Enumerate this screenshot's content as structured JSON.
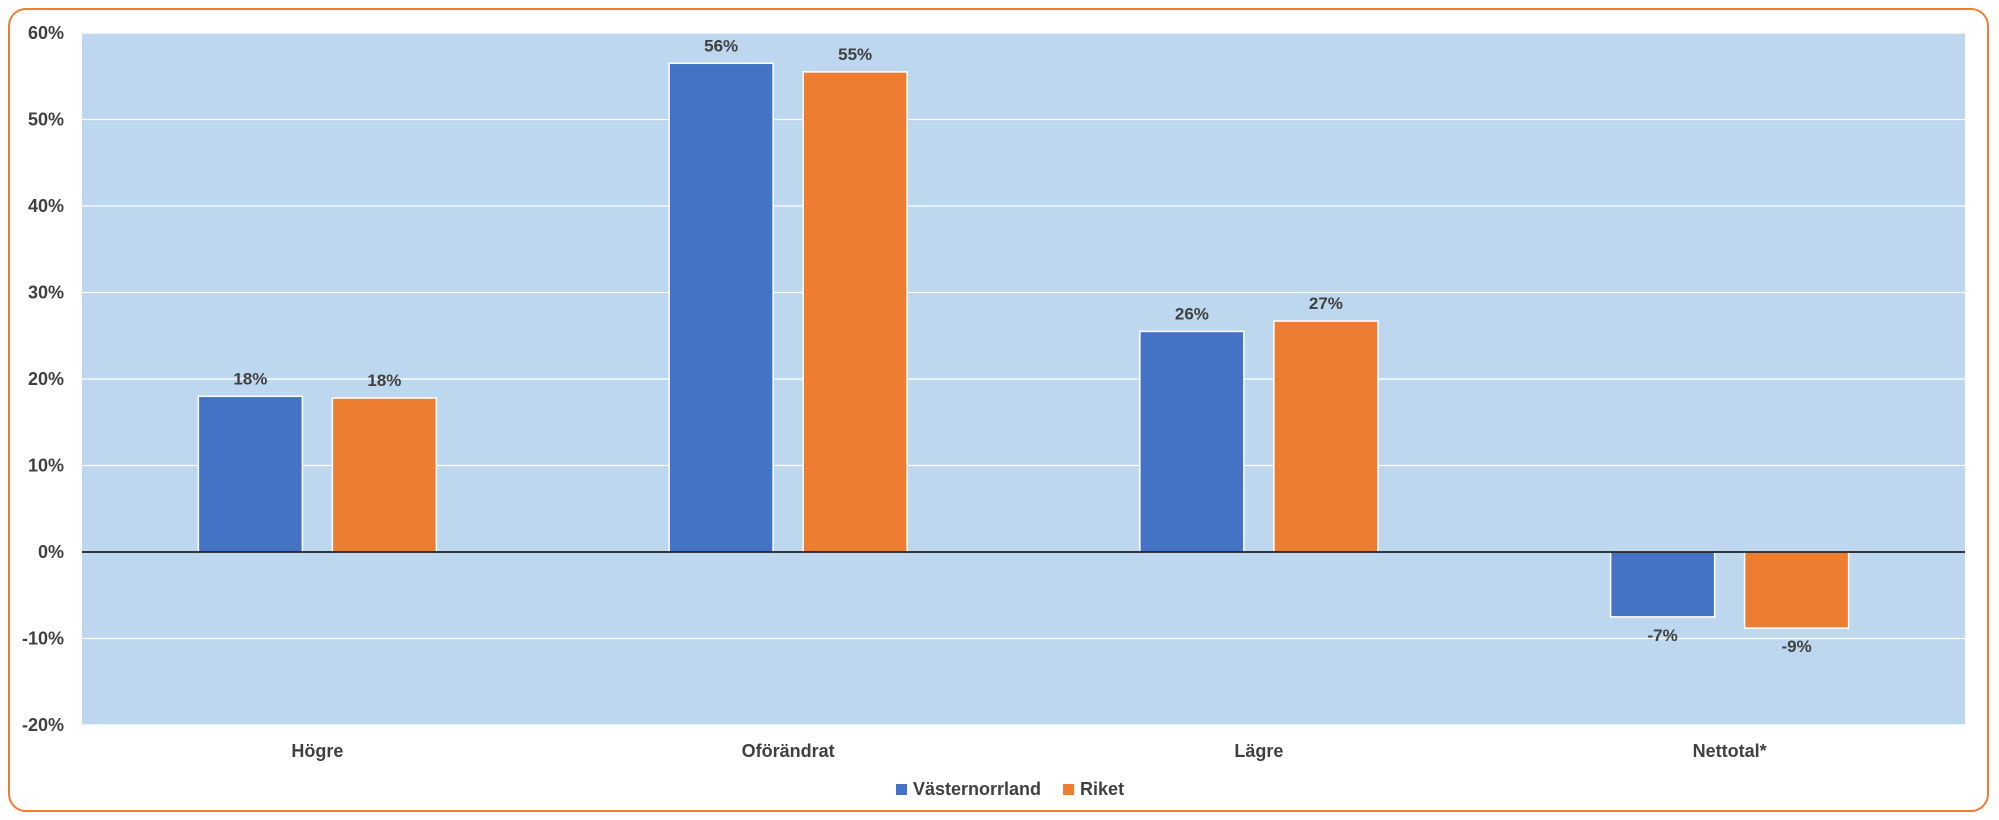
{
  "chart_data": {
    "type": "bar",
    "categories": [
      "Högre",
      "Oförändrat",
      "Lägre",
      "Nettotal*"
    ],
    "series": [
      {
        "name": "Västernorrland",
        "color": "#4472C4",
        "values": [
          18,
          56.5,
          25.5,
          -7.5
        ],
        "labels": [
          "18%",
          "56%",
          "26%",
          "-7%"
        ]
      },
      {
        "name": "Riket",
        "color": "#ED7D31",
        "values": [
          17.8,
          55.5,
          26.7,
          -8.8
        ],
        "labels": [
          "18%",
          "55%",
          "27%",
          "-9%"
        ]
      }
    ],
    "ylim": [
      -20,
      60
    ],
    "yticks": [
      -20,
      -10,
      0,
      10,
      20,
      30,
      40,
      50,
      60
    ],
    "ytick_labels": [
      "-20%",
      "-10%",
      "0%",
      "10%",
      "20%",
      "30%",
      "40%",
      "50%",
      "60%"
    ],
    "grid": true,
    "legend": "bottom-center",
    "plot_background": "#BDD7EE",
    "frame_color": "#ED7D31"
  }
}
